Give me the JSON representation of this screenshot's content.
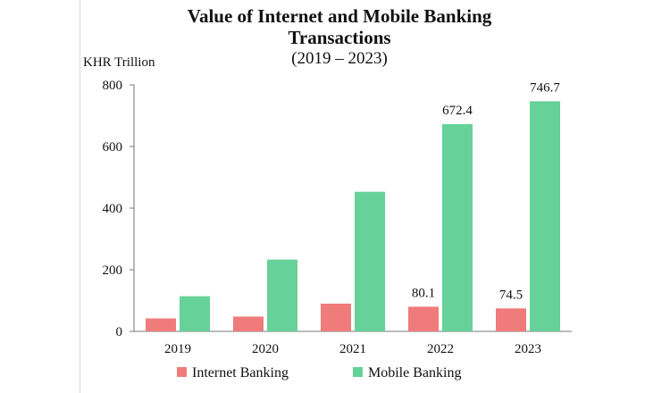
{
  "chart_data": {
    "type": "bar",
    "title_line1": "Value of Internet and Mobile Banking",
    "title_line2": "Transactions",
    "subtitle": "(2019 – 2023)",
    "ylabel": "KHR Trillion",
    "xlabel": "",
    "categories": [
      "2019",
      "2020",
      "2021",
      "2022",
      "2023"
    ],
    "ylim": [
      0,
      800
    ],
    "yticks": [
      "0",
      "200",
      "400",
      "600",
      "800"
    ],
    "grid": false,
    "legend_position": "bottom",
    "series": [
      {
        "name": "Internet Banking",
        "color": "#f07b7b",
        "values": [
          42,
          48,
          90,
          80.1,
          74.5
        ],
        "data_labels": [
          null,
          null,
          null,
          "80.1",
          "74.5"
        ]
      },
      {
        "name": "Mobile Banking",
        "color": "#66d198",
        "values": [
          114,
          233,
          453,
          672.4,
          746.7
        ],
        "data_labels": [
          null,
          null,
          null,
          "672.4",
          "746.7"
        ]
      }
    ]
  }
}
